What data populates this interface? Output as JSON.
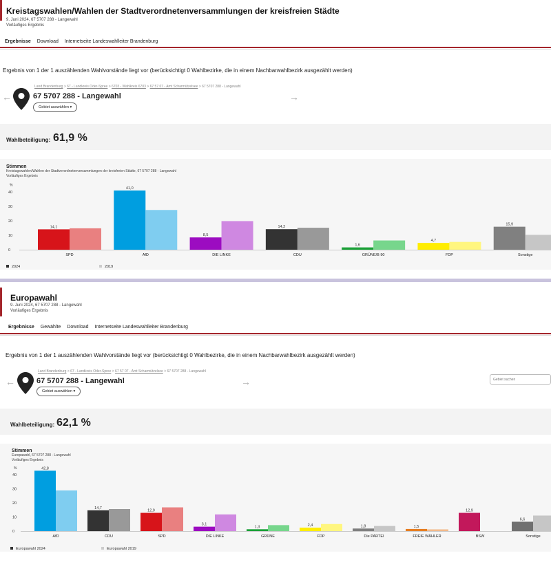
{
  "section1": {
    "title": "Kreistagswahlen/Wahlen der Stadtverordnetenversammlungen der kreisfreien Städte",
    "subtitle1": "9. Juni 2024, 67 5707 288 - Langewahl",
    "subtitle2": "Vorläufiges Ergebnis",
    "nav": [
      "Ergebnisse",
      "Download",
      "Internetseite Landeswahlleiter Brandenburg"
    ],
    "info": "Ergebnis von 1 der 1 auszählenden Wahlvorstände liegt vor (berücksichtigt 0 Wahlbezirke, die in einem Nachbarwahlbezirk ausgezählt werden)",
    "breadcrumbs": [
      "Land Brandenburg",
      "67 - Landkreis Oder-Spree",
      "6703 - Wahlkreis 6703",
      "67 57 07 - Amt Scharmützelsee",
      "67 5707 288 - Langewahl"
    ],
    "place": "67 5707 288 - Langewahl",
    "select_label": "Gebiet auswählen ▾",
    "turnout_label": "Wahlbeteiligung:",
    "turnout_value": "61,9 %",
    "chart_title": "Stimmen",
    "chart_sub1": "Kreistagswahlen/Wahlen der Stadtverordnetenversammlungen der kreisfreien Städte, 67 5707 288 - Langewahl",
    "chart_sub2": "Vorläufiges Ergebnis"
  },
  "section2": {
    "title": "Europawahl",
    "subtitle1": "9. Juni 2024, 67 5707 288 - Langewahl",
    "subtitle2": "Vorläufiges Ergebnis",
    "nav": [
      "Ergebnisse",
      "Gewählte",
      "Download",
      "Internetseite Landeswahlleiter Brandenburg"
    ],
    "info": "Ergebnis von 1 der 1 auszählenden Wahlvorstände liegt vor (berücksichtigt 0 Wahlbezirke, die in einem Nachbarwahlbezirk ausgezählt werden)",
    "breadcrumbs": [
      "Land Brandenburg",
      "67 - Landkreis Oder-Spree",
      "67 57 07 - Amt Scharmützelsee",
      "67 5707 288 - Langewahl"
    ],
    "place": "67 5707 288 - Langewahl",
    "select_label": "Gebiet auswählen ▾",
    "search_placeholder": "Gebiet suchen",
    "turnout_label": "Wahlbeteiligung:",
    "turnout_value": "62,1 %",
    "chart_title": "Stimmen",
    "chart_sub1": "Europawahl, 67 5707 288 - Langewahl",
    "chart_sub2": "Vorläufiges Ergebnis"
  },
  "chart_data": [
    {
      "type": "bar",
      "categories": [
        "SPD",
        "AfD",
        "DIE LINKE",
        "CDU",
        "GRÜNE/B 90",
        "FDP",
        "Sonstige"
      ],
      "ylabel": "%",
      "ylim": [
        0,
        45
      ],
      "yticks": [
        0,
        10,
        20,
        30,
        40
      ],
      "series": [
        {
          "name": "2024",
          "values": [
            14.1,
            41.0,
            8.5,
            14.2,
            1.6,
            4.7,
            15.9
          ],
          "labels": [
            "14,1",
            "41,0",
            "8,5",
            "14,2",
            "1,6",
            "4,7",
            "15,9"
          ]
        },
        {
          "name": "2019",
          "values": [
            14.8,
            27.5,
            19.8,
            15.2,
            6.4,
            5.4,
            10.3
          ]
        }
      ],
      "colors": [
        "#d7141a",
        "#009ee0",
        "#9c0cc1",
        "#333333",
        "#1aa037",
        "#ffed00",
        "#808080"
      ],
      "colors_prev": [
        "#e98080",
        "#7fcdf0",
        "#cf88e1",
        "#999999",
        "#77d68c",
        "#fff67f",
        "#c6c6c6"
      ],
      "legend": "bottom-left"
    },
    {
      "type": "bar",
      "categories": [
        "AfD",
        "CDU",
        "SPD",
        "DIE LINKE",
        "GRÜNE",
        "FDP",
        "Die PARTEI",
        "FREIE WÄHLER",
        "BSW",
        "Sonstige"
      ],
      "ylabel": "%",
      "ylim": [
        0,
        45
      ],
      "yticks": [
        0,
        10,
        20,
        30,
        40
      ],
      "series": [
        {
          "name": "Europawahl 2024",
          "values": [
            42.8,
            14.7,
            12.9,
            3.1,
            1.3,
            2.4,
            1.8,
            1.5,
            12.9,
            6.6
          ],
          "labels": [
            "42,8",
            "14,7",
            "12,9",
            "3,1",
            "1,3",
            "2,4",
            "1,8",
            "1,5",
            "12,9",
            "6,6"
          ]
        },
        {
          "name": "Europawahl 2019",
          "values": [
            28.8,
            15.6,
            16.8,
            11.8,
            4.2,
            5.0,
            3.6,
            1.2,
            null,
            11.0
          ]
        }
      ],
      "colors": [
        "#009ee0",
        "#333333",
        "#d7141a",
        "#9c0cc1",
        "#1aa037",
        "#ffed00",
        "#808080",
        "#e67e22",
        "#c2185b",
        "#707070"
      ],
      "colors_prev": [
        "#7fcdf0",
        "#999999",
        "#e98080",
        "#cf88e1",
        "#77d68c",
        "#fff67f",
        "#c6c6c6",
        "#f2b98a",
        "#e07fa8",
        "#c6c6c6"
      ],
      "legend": "bottom-left"
    }
  ]
}
